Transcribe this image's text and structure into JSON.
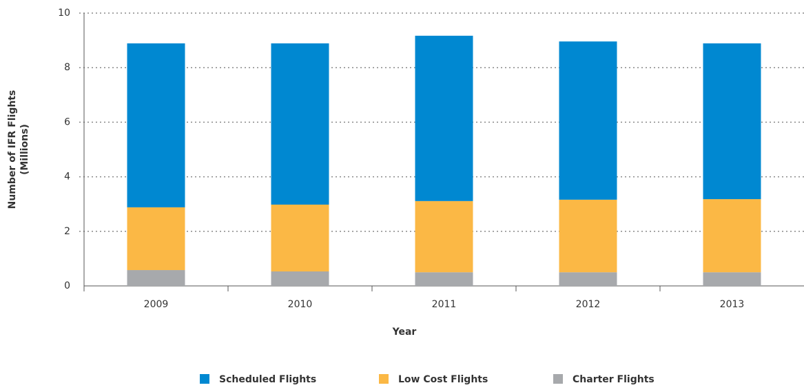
{
  "chart_data": {
    "type": "stacked_bar",
    "ylabel": [
      "Number of IFR Flights",
      "(Millions)"
    ],
    "xlabel": "Year",
    "categories": [
      "2009",
      "2010",
      "2011",
      "2012",
      "2013"
    ],
    "series": [
      {
        "name": "Scheduled Flights",
        "color": "#0088d1",
        "values": [
          6.01,
          5.91,
          6.06,
          5.8,
          5.71
        ]
      },
      {
        "name": "Low Cost Flights",
        "color": "#fbb845",
        "values": [
          2.3,
          2.45,
          2.61,
          2.66,
          2.68
        ]
      },
      {
        "name": "Charter Flights",
        "color": "#a7a9ac",
        "values": [
          0.58,
          0.53,
          0.5,
          0.5,
          0.5
        ]
      }
    ],
    "ylim": [
      0,
      10
    ],
    "yticks": [
      0,
      2,
      4,
      6,
      8,
      10
    ],
    "grid": true,
    "legend": "bottom"
  }
}
